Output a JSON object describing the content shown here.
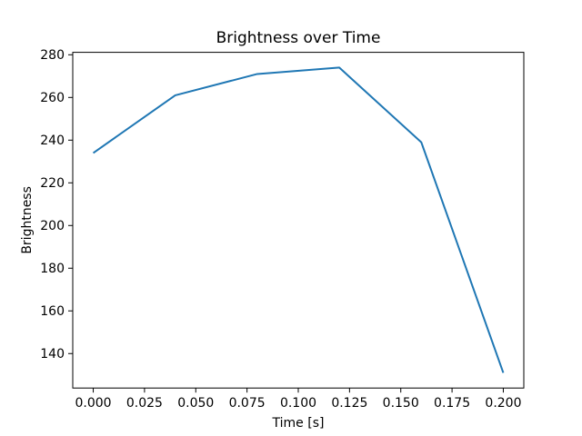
{
  "chart_data": {
    "type": "line",
    "title": "Brightness over Time",
    "xlabel": "Time [s]",
    "ylabel": "Brightness",
    "x": [
      0.0,
      0.04,
      0.08,
      0.12,
      0.16,
      0.2
    ],
    "y": [
      234,
      261,
      271,
      274,
      239,
      131
    ],
    "series": [
      {
        "name": "brightness",
        "x": [
          0.0,
          0.04,
          0.08,
          0.12,
          0.16,
          0.2
        ],
        "values": [
          234,
          261,
          271,
          274,
          239,
          131
        ]
      }
    ],
    "xlim": [
      -0.01,
      0.21
    ],
    "ylim": [
      123.85,
      281.15
    ],
    "x_tick_values": [
      0.0,
      0.025,
      0.05,
      0.075,
      0.1,
      0.125,
      0.15,
      0.175,
      0.2
    ],
    "x_tick_labels": [
      "0.000",
      "0.025",
      "0.050",
      "0.075",
      "0.100",
      "0.125",
      "0.150",
      "0.175",
      "0.200"
    ],
    "y_tick_values": [
      140,
      160,
      180,
      200,
      220,
      240,
      260,
      280
    ],
    "y_tick_labels": [
      "140",
      "160",
      "180",
      "200",
      "220",
      "240",
      "260",
      "280"
    ],
    "grid": false,
    "legend": null,
    "line_color": "#1f77b4",
    "spine_color": "#000000",
    "background_color": "#ffffff"
  }
}
